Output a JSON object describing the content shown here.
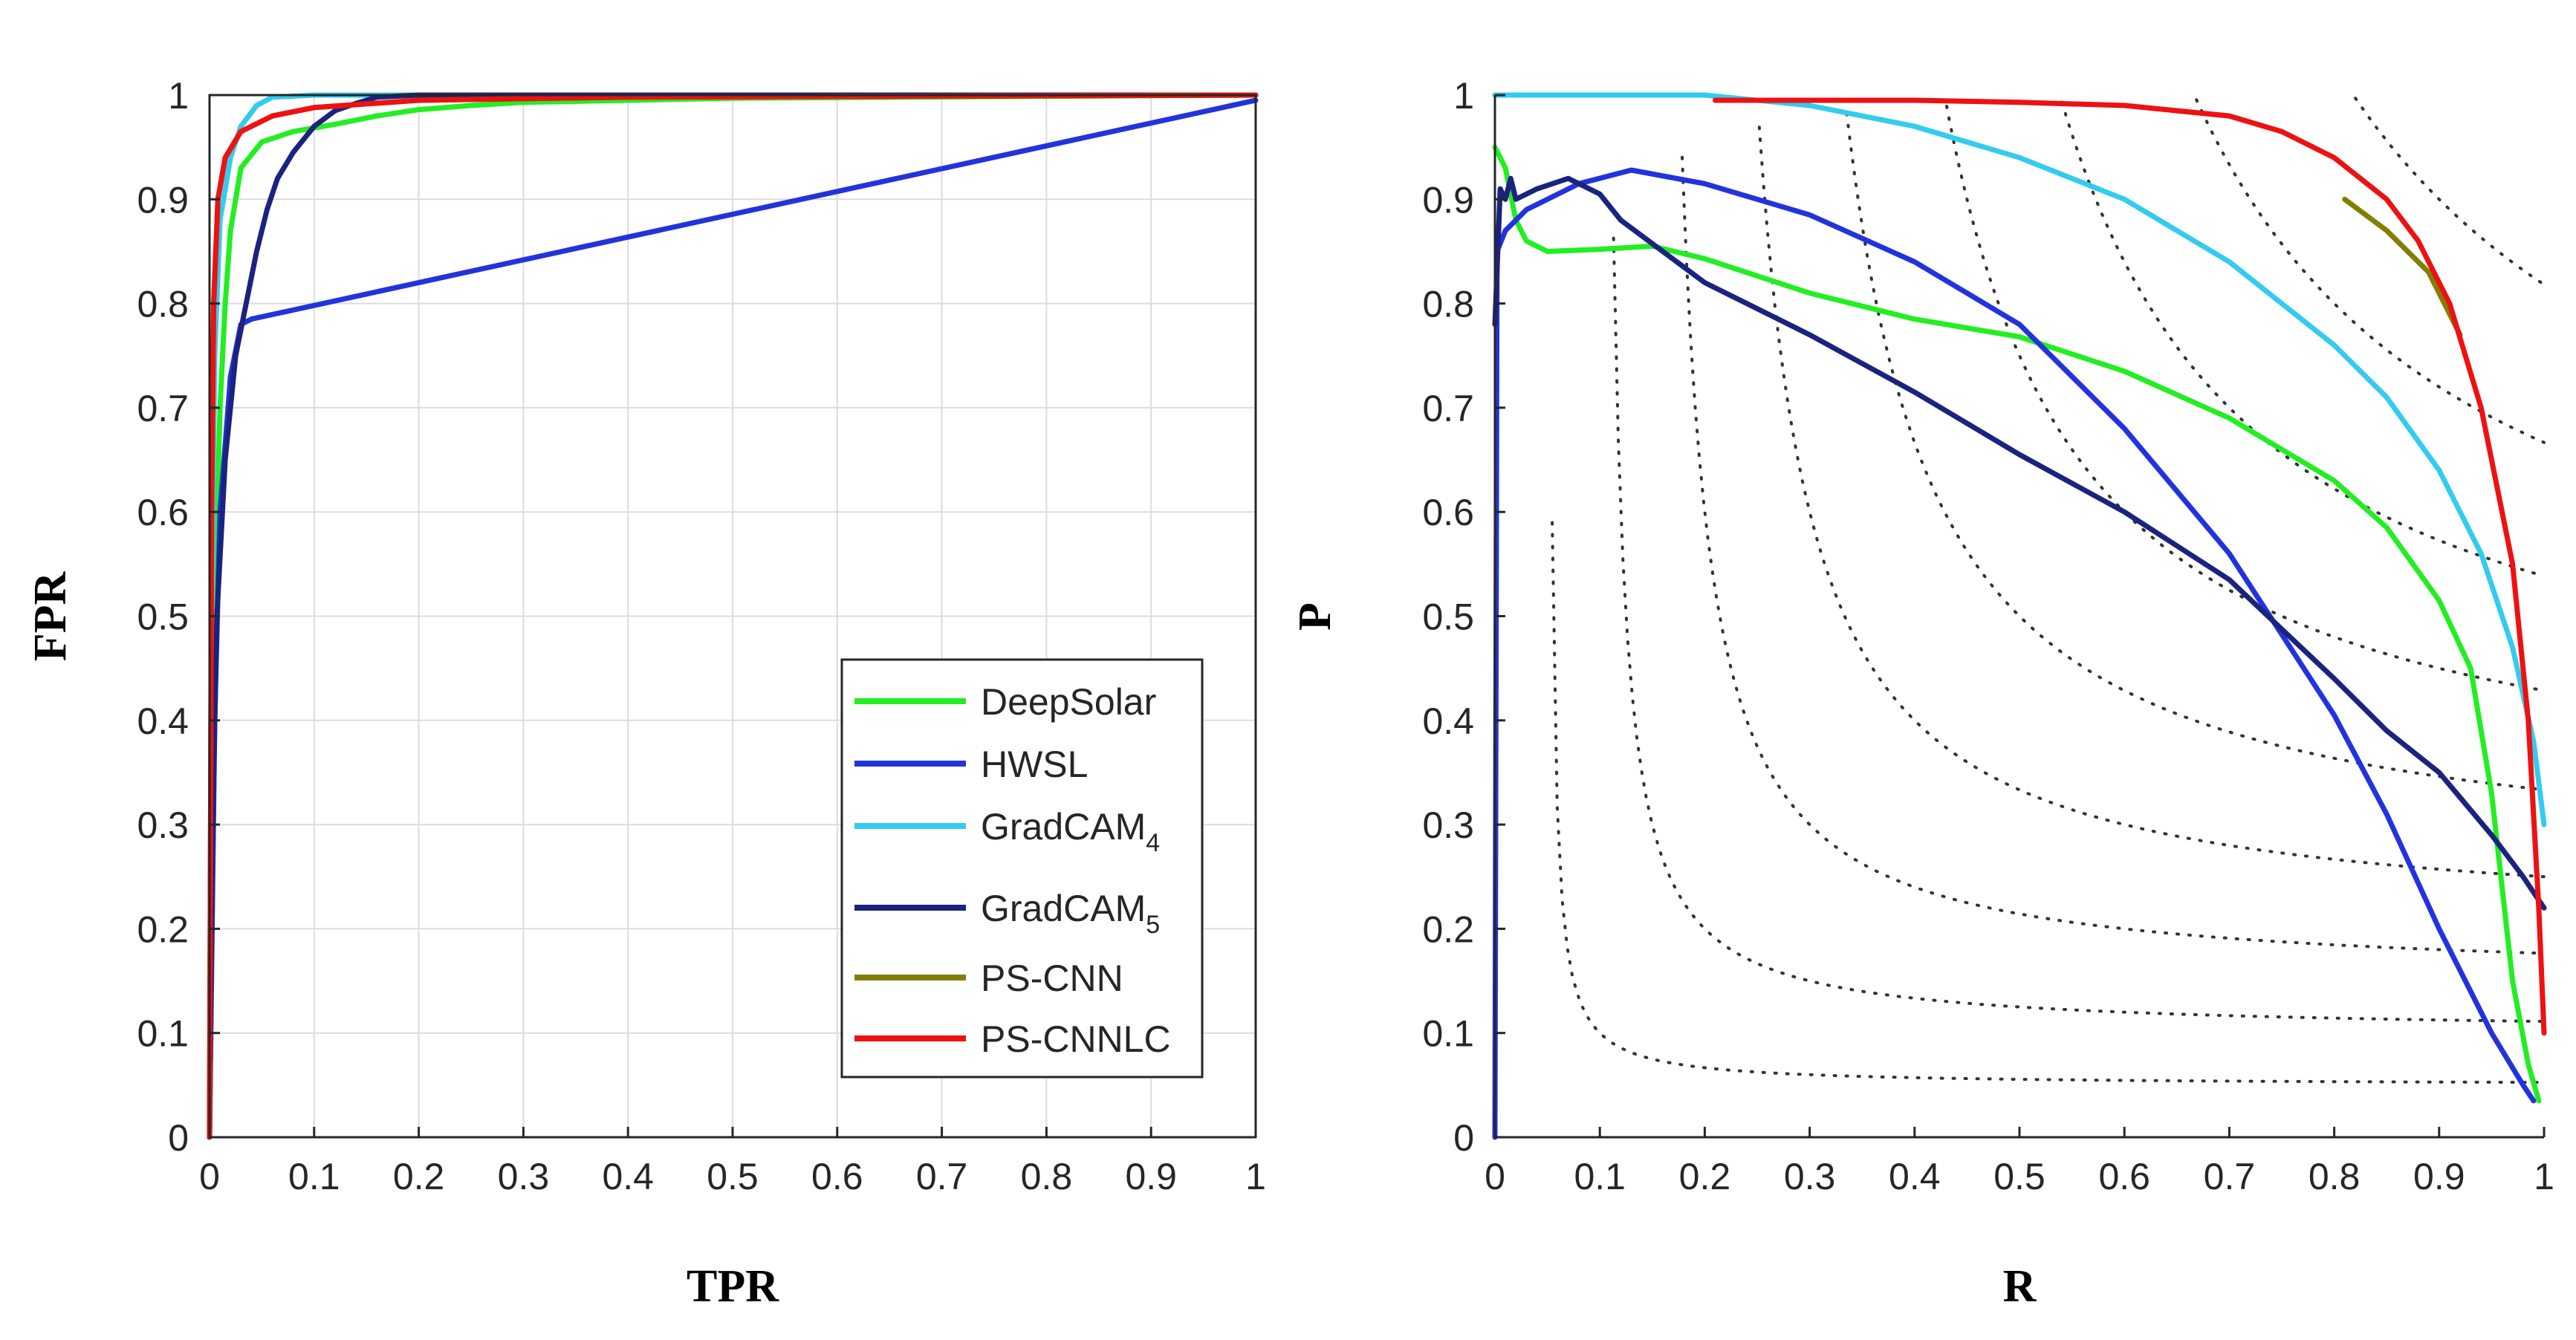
{
  "chart_data": [
    {
      "type": "line",
      "id": "roc",
      "xlabel": "TPR",
      "ylabel": "FPR",
      "xlim": [
        0,
        1
      ],
      "ylim": [
        0,
        1
      ],
      "grid": true,
      "xticks": [
        "0",
        "0.1",
        "0.2",
        "0.3",
        "0.4",
        "0.5",
        "0.6",
        "0.7",
        "0.8",
        "0.9",
        "1"
      ],
      "yticks": [
        "0",
        "0.1",
        "0.2",
        "0.3",
        "0.4",
        "0.5",
        "0.6",
        "0.7",
        "0.8",
        "0.9",
        "1"
      ],
      "legend": {
        "position": "lower-right",
        "entries": [
          {
            "name": "DeepSolar",
            "sub": "",
            "color": "#22ee22"
          },
          {
            "name": "HWSL",
            "sub": "",
            "color": "#2233dd"
          },
          {
            "name": "GradCAM",
            "sub": "4",
            "color": "#33ccee"
          },
          {
            "name": "GradCAM",
            "sub": "5",
            "color": "#1a237e"
          },
          {
            "name": "PS-CNN",
            "sub": "",
            "color": "#808000"
          },
          {
            "name": "PS-CNNLC",
            "sub": "",
            "color": "#ee1111"
          }
        ]
      },
      "series": [
        {
          "name": "DeepSolar",
          "color": "#22ee22",
          "points": [
            [
              0,
              0
            ],
            [
              0.003,
              0.3
            ],
            [
              0.006,
              0.55
            ],
            [
              0.01,
              0.7
            ],
            [
              0.015,
              0.8
            ],
            [
              0.02,
              0.87
            ],
            [
              0.03,
              0.93
            ],
            [
              0.05,
              0.955
            ],
            [
              0.08,
              0.965
            ],
            [
              0.12,
              0.972
            ],
            [
              0.16,
              0.98
            ],
            [
              0.2,
              0.986
            ],
            [
              0.25,
              0.99
            ],
            [
              0.3,
              0.993
            ],
            [
              0.5,
              0.997
            ],
            [
              1,
              1
            ]
          ]
        },
        {
          "name": "HWSL",
          "color": "#2233dd",
          "points": [
            [
              0,
              0
            ],
            [
              0.005,
              0.4
            ],
            [
              0.01,
              0.6
            ],
            [
              0.02,
              0.73
            ],
            [
              0.03,
              0.78
            ],
            [
              0.04,
              0.785
            ],
            [
              1,
              0.995
            ]
          ]
        },
        {
          "name": "GradCAM4",
          "color": "#33ccee",
          "points": [
            [
              0,
              0
            ],
            [
              0.002,
              0.5
            ],
            [
              0.005,
              0.75
            ],
            [
              0.01,
              0.88
            ],
            [
              0.02,
              0.94
            ],
            [
              0.03,
              0.97
            ],
            [
              0.045,
              0.99
            ],
            [
              0.06,
              0.998
            ],
            [
              0.1,
              1
            ],
            [
              1,
              1
            ]
          ]
        },
        {
          "name": "GradCAM5",
          "color": "#1a237e",
          "points": [
            [
              0,
              0
            ],
            [
              0.003,
              0.3
            ],
            [
              0.007,
              0.5
            ],
            [
              0.015,
              0.65
            ],
            [
              0.025,
              0.75
            ],
            [
              0.035,
              0.8
            ],
            [
              0.045,
              0.85
            ],
            [
              0.055,
              0.89
            ],
            [
              0.065,
              0.92
            ],
            [
              0.08,
              0.945
            ],
            [
              0.1,
              0.97
            ],
            [
              0.12,
              0.985
            ],
            [
              0.14,
              0.992
            ],
            [
              0.16,
              0.998
            ],
            [
              0.2,
              1
            ],
            [
              1,
              1
            ]
          ]
        },
        {
          "name": "PS-CNN",
          "color": "#808000",
          "points": [
            [
              0,
              0
            ],
            [
              0.002,
              0.6
            ],
            [
              0.004,
              0.8
            ],
            [
              0.008,
              0.9
            ],
            [
              0.015,
              0.94
            ],
            [
              0.03,
              0.965
            ],
            [
              0.06,
              0.98
            ],
            [
              0.1,
              0.988
            ],
            [
              0.2,
              0.995
            ],
            [
              0.4,
              0.998
            ],
            [
              1,
              1
            ]
          ]
        },
        {
          "name": "PS-CNNLC",
          "color": "#ee1111",
          "points": [
            [
              0,
              0
            ],
            [
              0.002,
              0.6
            ],
            [
              0.004,
              0.8
            ],
            [
              0.008,
              0.9
            ],
            [
              0.015,
              0.94
            ],
            [
              0.03,
              0.965
            ],
            [
              0.06,
              0.98
            ],
            [
              0.1,
              0.988
            ],
            [
              0.2,
              0.995
            ],
            [
              0.4,
              0.998
            ],
            [
              1,
              1
            ]
          ]
        }
      ]
    },
    {
      "type": "line",
      "id": "pr",
      "xlabel": "R",
      "ylabel": "P",
      "xlim": [
        0,
        1
      ],
      "ylim": [
        0,
        1
      ],
      "grid": false,
      "xticks": [
        "0",
        "0.1",
        "0.2",
        "0.3",
        "0.4",
        "0.5",
        "0.6",
        "0.7",
        "0.8",
        "0.9",
        "1"
      ],
      "yticks": [
        "0",
        "0.1",
        "0.2",
        "0.3",
        "0.4",
        "0.5",
        "0.6",
        "0.7",
        "0.8",
        "0.9",
        "1"
      ],
      "iso_f1_levels": [
        0.1,
        0.2,
        0.3,
        0.4,
        0.5,
        0.6,
        0.7,
        0.8,
        0.9
      ],
      "series": [
        {
          "name": "DeepSolar",
          "color": "#22ee22",
          "points": [
            [
              0,
              0.95
            ],
            [
              0.01,
              0.93
            ],
            [
              0.02,
              0.88
            ],
            [
              0.03,
              0.86
            ],
            [
              0.05,
              0.85
            ],
            [
              0.1,
              0.852
            ],
            [
              0.15,
              0.855
            ],
            [
              0.2,
              0.843
            ],
            [
              0.3,
              0.81
            ],
            [
              0.4,
              0.785
            ],
            [
              0.5,
              0.768
            ],
            [
              0.6,
              0.735
            ],
            [
              0.7,
              0.69
            ],
            [
              0.8,
              0.63
            ],
            [
              0.85,
              0.585
            ],
            [
              0.9,
              0.515
            ],
            [
              0.93,
              0.45
            ],
            [
              0.95,
              0.33
            ],
            [
              0.97,
              0.15
            ],
            [
              0.985,
              0.07
            ],
            [
              0.995,
              0.035
            ]
          ]
        },
        {
          "name": "HWSL",
          "color": "#2233dd",
          "points": [
            [
              0,
              0
            ],
            [
              0.002,
              0.85
            ],
            [
              0.01,
              0.87
            ],
            [
              0.03,
              0.89
            ],
            [
              0.08,
              0.915
            ],
            [
              0.13,
              0.928
            ],
            [
              0.2,
              0.915
            ],
            [
              0.3,
              0.885
            ],
            [
              0.4,
              0.84
            ],
            [
              0.5,
              0.78
            ],
            [
              0.6,
              0.68
            ],
            [
              0.7,
              0.56
            ],
            [
              0.8,
              0.405
            ],
            [
              0.85,
              0.31
            ],
            [
              0.9,
              0.2
            ],
            [
              0.95,
              0.1
            ],
            [
              0.98,
              0.05
            ],
            [
              0.99,
              0.035
            ]
          ]
        },
        {
          "name": "GradCAM4",
          "color": "#33ccee",
          "points": [
            [
              0,
              1
            ],
            [
              0.2,
              1
            ],
            [
              0.3,
              0.99
            ],
            [
              0.4,
              0.97
            ],
            [
              0.5,
              0.94
            ],
            [
              0.6,
              0.9
            ],
            [
              0.7,
              0.84
            ],
            [
              0.8,
              0.76
            ],
            [
              0.85,
              0.71
            ],
            [
              0.9,
              0.64
            ],
            [
              0.94,
              0.56
            ],
            [
              0.97,
              0.47
            ],
            [
              0.99,
              0.38
            ],
            [
              1,
              0.3
            ]
          ]
        },
        {
          "name": "GradCAM5",
          "color": "#1a237e",
          "points": [
            [
              0,
              0.78
            ],
            [
              0.005,
              0.91
            ],
            [
              0.01,
              0.9
            ],
            [
              0.015,
              0.92
            ],
            [
              0.02,
              0.9
            ],
            [
              0.04,
              0.91
            ],
            [
              0.07,
              0.92
            ],
            [
              0.1,
              0.905
            ],
            [
              0.12,
              0.88
            ],
            [
              0.2,
              0.82
            ],
            [
              0.3,
              0.77
            ],
            [
              0.4,
              0.715
            ],
            [
              0.5,
              0.655
            ],
            [
              0.6,
              0.6
            ],
            [
              0.7,
              0.535
            ],
            [
              0.8,
              0.44
            ],
            [
              0.85,
              0.39
            ],
            [
              0.9,
              0.35
            ],
            [
              0.95,
              0.29
            ],
            [
              0.98,
              0.25
            ],
            [
              1,
              0.22
            ]
          ]
        },
        {
          "name": "PS-CNN",
          "color": "#808000",
          "points": [
            [
              0.81,
              0.9
            ],
            [
              0.85,
              0.87
            ],
            [
              0.89,
              0.83
            ],
            [
              0.92,
              0.77
            ]
          ]
        },
        {
          "name": "PS-CNNLC",
          "color": "#ee1111",
          "points": [
            [
              0.21,
              0.995
            ],
            [
              0.4,
              0.995
            ],
            [
              0.5,
              0.993
            ],
            [
              0.6,
              0.99
            ],
            [
              0.7,
              0.98
            ],
            [
              0.75,
              0.965
            ],
            [
              0.8,
              0.94
            ],
            [
              0.85,
              0.9
            ],
            [
              0.88,
              0.86
            ],
            [
              0.91,
              0.8
            ],
            [
              0.94,
              0.7
            ],
            [
              0.97,
              0.55
            ],
            [
              0.985,
              0.4
            ],
            [
              0.995,
              0.22
            ],
            [
              1,
              0.1
            ]
          ]
        }
      ]
    }
  ]
}
